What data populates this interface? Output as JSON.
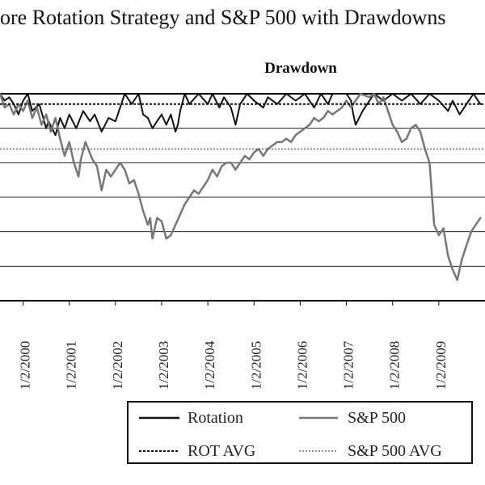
{
  "chart_data": {
    "type": "line",
    "title": "ore Rotation Strategy and S&P 500 with Drawdowns",
    "subtitle": "Drawdown",
    "x_tick_labels": [
      "1/2/2000",
      "1/2/2001",
      "1/2/2002",
      "1/2/2003",
      "1/2/2004",
      "1/2/2005",
      "1/2/2006",
      "1/2/2007",
      "1/2/2008",
      "1/2/2009"
    ],
    "xlim": [
      1999.5,
      2010.0
    ],
    "ylim": [
      -0.6,
      0.0
    ],
    "grid": "horizontal",
    "gridlines": [
      0.0,
      -0.1,
      -0.2,
      -0.3,
      -0.4,
      -0.5,
      -0.6
    ],
    "series": [
      {
        "name": "Rotation",
        "style": "solid",
        "color": "#111111",
        "points": [
          [
            1999.5,
            0.0
          ],
          [
            1999.6,
            -0.02
          ],
          [
            1999.7,
            -0.01
          ],
          [
            1999.8,
            -0.03
          ],
          [
            1999.9,
            -0.06
          ],
          [
            2000.0,
            -0.02
          ],
          [
            2000.1,
            -0.0
          ],
          [
            2000.2,
            -0.05
          ],
          [
            2000.35,
            -0.03
          ],
          [
            2000.5,
            -0.1
          ],
          [
            2000.55,
            -0.08
          ],
          [
            2000.7,
            -0.12
          ],
          [
            2000.8,
            -0.07
          ],
          [
            2000.9,
            -0.1
          ],
          [
            2001.0,
            -0.06
          ],
          [
            2001.15,
            -0.1
          ],
          [
            2001.3,
            -0.05
          ],
          [
            2001.45,
            -0.08
          ],
          [
            2001.55,
            -0.06
          ],
          [
            2001.7,
            -0.11
          ],
          [
            2001.85,
            -0.07
          ],
          [
            2002.0,
            -0.08
          ],
          [
            2002.1,
            -0.04
          ],
          [
            2002.2,
            -0.0
          ],
          [
            2002.35,
            -0.03
          ],
          [
            2002.5,
            0.0
          ],
          [
            2002.6,
            -0.06
          ],
          [
            2002.7,
            -0.07
          ],
          [
            2002.8,
            -0.1
          ],
          [
            2002.9,
            -0.08
          ],
          [
            2003.0,
            -0.06
          ],
          [
            2003.1,
            -0.09
          ],
          [
            2003.2,
            -0.06
          ],
          [
            2003.3,
            -0.11
          ],
          [
            2003.35,
            -0.09
          ],
          [
            2003.4,
            -0.05
          ],
          [
            2003.5,
            -0.0
          ],
          [
            2003.6,
            -0.03
          ],
          [
            2003.8,
            -0.0
          ],
          [
            2004.0,
            -0.03
          ],
          [
            2004.1,
            -0.0
          ],
          [
            2004.25,
            -0.04
          ],
          [
            2004.35,
            -0.01
          ],
          [
            2004.5,
            -0.04
          ],
          [
            2004.6,
            -0.09
          ],
          [
            2004.7,
            -0.03
          ],
          [
            2004.85,
            -0.0
          ],
          [
            2005.0,
            -0.02
          ],
          [
            2005.2,
            -0.04
          ],
          [
            2005.3,
            -0.01
          ],
          [
            2005.5,
            -0.03
          ],
          [
            2005.7,
            -0.0
          ],
          [
            2005.9,
            -0.02
          ],
          [
            2006.1,
            -0.0
          ],
          [
            2006.3,
            -0.04
          ],
          [
            2006.45,
            -0.0
          ],
          [
            2006.6,
            -0.03
          ],
          [
            2006.7,
            -0.0
          ],
          [
            2006.85,
            -0.0
          ],
          [
            2007.0,
            -0.0
          ],
          [
            2007.1,
            -0.02
          ],
          [
            2007.15,
            -0.06
          ],
          [
            2007.2,
            -0.09
          ],
          [
            2007.35,
            -0.05
          ],
          [
            2007.5,
            -0.02
          ],
          [
            2007.6,
            -0.0
          ],
          [
            2007.8,
            -0.02
          ],
          [
            2008.0,
            -0.0
          ],
          [
            2008.2,
            -0.02
          ],
          [
            2008.4,
            -0.0
          ],
          [
            2008.6,
            -0.03
          ],
          [
            2008.8,
            -0.0
          ],
          [
            2009.0,
            -0.02
          ],
          [
            2009.2,
            -0.05
          ],
          [
            2009.3,
            -0.02
          ],
          [
            2009.45,
            -0.06
          ],
          [
            2009.6,
            -0.03
          ],
          [
            2009.75,
            -0.0
          ],
          [
            2009.9,
            -0.03
          ]
        ]
      },
      {
        "name": "S&P 500",
        "style": "solid",
        "color": "#777777",
        "points": [
          [
            1999.5,
            0.0
          ],
          [
            1999.6,
            -0.04
          ],
          [
            1999.7,
            -0.03
          ],
          [
            1999.8,
            -0.06
          ],
          [
            1999.9,
            -0.03
          ],
          [
            2000.0,
            -0.05
          ],
          [
            2000.1,
            -0.02
          ],
          [
            2000.2,
            -0.07
          ],
          [
            2000.3,
            -0.04
          ],
          [
            2000.4,
            -0.09
          ],
          [
            2000.5,
            -0.06
          ],
          [
            2000.6,
            -0.11
          ],
          [
            2000.7,
            -0.07
          ],
          [
            2000.8,
            -0.13
          ],
          [
            2000.9,
            -0.18
          ],
          [
            2001.0,
            -0.14
          ],
          [
            2001.1,
            -0.2
          ],
          [
            2001.2,
            -0.24
          ],
          [
            2001.25,
            -0.19
          ],
          [
            2001.35,
            -0.14
          ],
          [
            2001.5,
            -0.19
          ],
          [
            2001.6,
            -0.21
          ],
          [
            2001.7,
            -0.28
          ],
          [
            2001.8,
            -0.22
          ],
          [
            2001.9,
            -0.24
          ],
          [
            2002.0,
            -0.22
          ],
          [
            2002.1,
            -0.2
          ],
          [
            2002.2,
            -0.22
          ],
          [
            2002.3,
            -0.26
          ],
          [
            2002.4,
            -0.25
          ],
          [
            2002.5,
            -0.29
          ],
          [
            2002.6,
            -0.34
          ],
          [
            2002.7,
            -0.38
          ],
          [
            2002.75,
            -0.36
          ],
          [
            2002.8,
            -0.42
          ],
          [
            2002.9,
            -0.36
          ],
          [
            2003.0,
            -0.37
          ],
          [
            2003.1,
            -0.42
          ],
          [
            2003.2,
            -0.41
          ],
          [
            2003.3,
            -0.38
          ],
          [
            2003.4,
            -0.35
          ],
          [
            2003.5,
            -0.32
          ],
          [
            2003.6,
            -0.3
          ],
          [
            2003.7,
            -0.28
          ],
          [
            2003.8,
            -0.29
          ],
          [
            2003.9,
            -0.27
          ],
          [
            2004.0,
            -0.25
          ],
          [
            2004.1,
            -0.22
          ],
          [
            2004.2,
            -0.24
          ],
          [
            2004.3,
            -0.21
          ],
          [
            2004.4,
            -0.2
          ],
          [
            2004.5,
            -0.2
          ],
          [
            2004.6,
            -0.22
          ],
          [
            2004.7,
            -0.2
          ],
          [
            2004.8,
            -0.18
          ],
          [
            2004.9,
            -0.19
          ],
          [
            2005.0,
            -0.17
          ],
          [
            2005.1,
            -0.16
          ],
          [
            2005.2,
            -0.18
          ],
          [
            2005.3,
            -0.16
          ],
          [
            2005.4,
            -0.15
          ],
          [
            2005.5,
            -0.14
          ],
          [
            2005.6,
            -0.14
          ],
          [
            2005.7,
            -0.13
          ],
          [
            2005.8,
            -0.14
          ],
          [
            2005.9,
            -0.12
          ],
          [
            2006.0,
            -0.11
          ],
          [
            2006.1,
            -0.1
          ],
          [
            2006.2,
            -0.09
          ],
          [
            2006.3,
            -0.07
          ],
          [
            2006.4,
            -0.08
          ],
          [
            2006.5,
            -0.07
          ],
          [
            2006.6,
            -0.05
          ],
          [
            2006.7,
            -0.06
          ],
          [
            2006.8,
            -0.05
          ],
          [
            2006.9,
            -0.04
          ],
          [
            2007.0,
            -0.02
          ],
          [
            2007.1,
            -0.04
          ],
          [
            2007.2,
            -0.02
          ],
          [
            2007.3,
            -0.0
          ],
          [
            2007.5,
            -0.01
          ],
          [
            2007.6,
            -0.0
          ],
          [
            2007.7,
            -0.03
          ],
          [
            2007.8,
            -0.01
          ],
          [
            2007.9,
            -0.05
          ],
          [
            2008.0,
            -0.09
          ],
          [
            2008.1,
            -0.11
          ],
          [
            2008.2,
            -0.14
          ],
          [
            2008.3,
            -0.13
          ],
          [
            2008.4,
            -0.1
          ],
          [
            2008.5,
            -0.09
          ],
          [
            2008.6,
            -0.11
          ],
          [
            2008.7,
            -0.16
          ],
          [
            2008.8,
            -0.2
          ],
          [
            2008.9,
            -0.38
          ],
          [
            2009.0,
            -0.41
          ],
          [
            2009.1,
            -0.39
          ],
          [
            2009.2,
            -0.47
          ],
          [
            2009.3,
            -0.51
          ],
          [
            2009.4,
            -0.54
          ],
          [
            2009.5,
            -0.48
          ],
          [
            2009.6,
            -0.44
          ],
          [
            2009.7,
            -0.4
          ],
          [
            2009.8,
            -0.38
          ],
          [
            2009.9,
            -0.36
          ]
        ]
      },
      {
        "name": "ROT AVG",
        "style": "dashed-dense",
        "color": "#111111",
        "value": -0.03
      },
      {
        "name": "S&P 500 AVG",
        "style": "dashed-sparse",
        "color": "#555555",
        "value": -0.16
      }
    ],
    "legend": {
      "placement": "bottom",
      "items": [
        "Rotation",
        "S&P 500",
        "ROT AVG",
        "S&P 500 AVG"
      ]
    }
  }
}
